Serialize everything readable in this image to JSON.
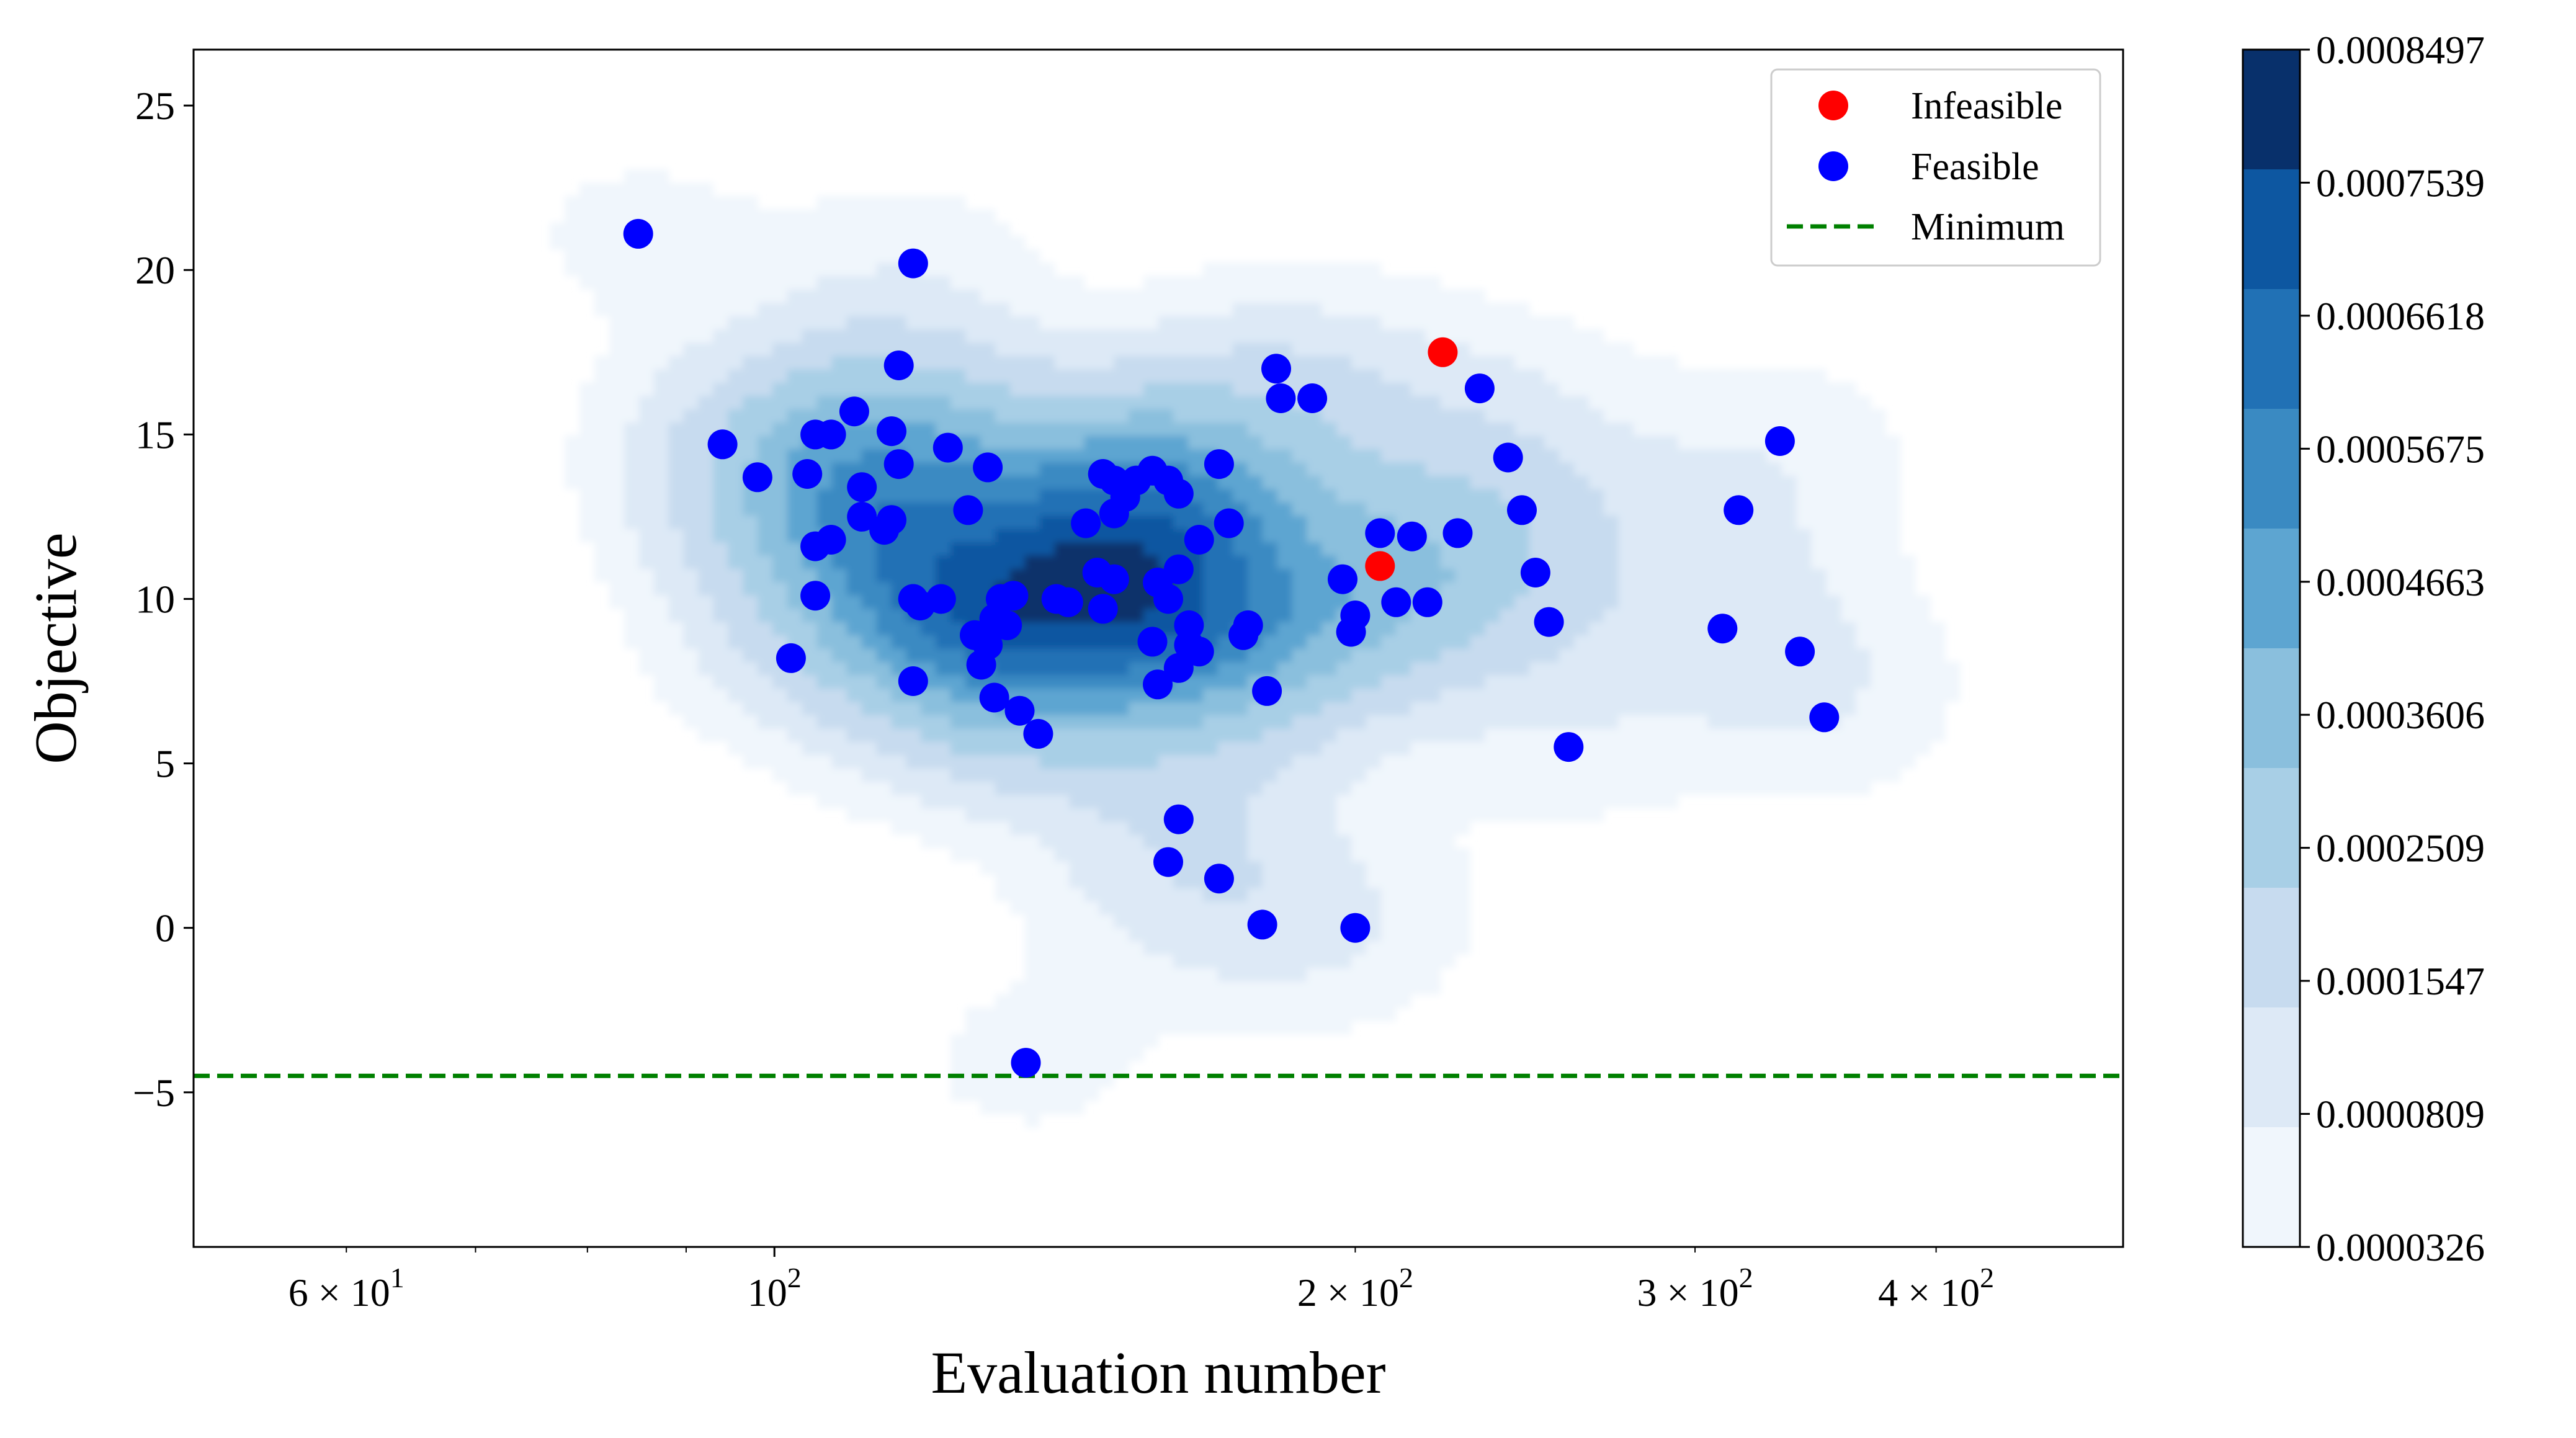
{
  "chart_data": {
    "type": "scatter",
    "title": "",
    "xlabel": "Evaluation number",
    "ylabel": "Objective",
    "xscale": "log",
    "xlim": [
      50,
      500
    ],
    "ylim": [
      -9.7,
      26.7
    ],
    "x_ticks": [
      {
        "value": 60,
        "base": "6",
        "exp": "1"
      },
      {
        "value": 100,
        "base": "",
        "exp": "2"
      },
      {
        "value": 200,
        "base": "2",
        "exp": "2"
      },
      {
        "value": 300,
        "base": "3",
        "exp": "2"
      },
      {
        "value": 400,
        "base": "4",
        "exp": "2"
      }
    ],
    "x_tick_base_prefix": "10",
    "x_tick_times": "×",
    "y_ticks": [
      25,
      20,
      15,
      10,
      5,
      0,
      -5
    ],
    "y_tick_labels": [
      "25",
      "20",
      "15",
      "10",
      "5",
      "0",
      "−5"
    ],
    "legend": {
      "position": "top-right",
      "entries": [
        {
          "label": "Infeasible",
          "kind": "marker",
          "color": "#ff0000"
        },
        {
          "label": "Feasible",
          "kind": "marker",
          "color": "#0000ff"
        },
        {
          "label": "Minimum",
          "kind": "dashed-line",
          "color": "#008000"
        }
      ]
    },
    "minimum_line": {
      "y": -4.5,
      "color": "#008000"
    },
    "colorbar": {
      "colormap": "Blues",
      "labels": [
        "0.0008497",
        "0.0007539",
        "0.0006618",
        "0.0005675",
        "0.0004663",
        "0.0003606",
        "0.0002509",
        "0.0001547",
        "0.0000809",
        "0.0000326"
      ],
      "colors": [
        "#08306b",
        "#0d57a1",
        "#2171b5",
        "#3a8ac2",
        "#5da5d1",
        "#8abfdd",
        "#a8cfe6",
        "#c7dbef",
        "#dde9f6",
        "#f0f6fc"
      ]
    },
    "density_contours": {
      "description": "KDE of feasible points",
      "center": {
        "x": 150,
        "y": 10.5
      }
    },
    "series": [
      {
        "name": "Infeasible",
        "color": "#ff0000",
        "points": [
          [
            222,
            17.5
          ],
          [
            206,
            11
          ]
        ]
      },
      {
        "name": "Feasible",
        "color": "#0000ff",
        "points": [
          [
            85,
            21.1
          ],
          [
            118,
            20.2
          ],
          [
            94,
            14.7
          ],
          [
            98,
            13.7
          ],
          [
            102,
            8.2
          ],
          [
            104,
            13.8
          ],
          [
            105,
            15.0
          ],
          [
            107,
            15.0
          ],
          [
            110,
            15.7
          ],
          [
            105,
            11.6
          ],
          [
            107,
            11.8
          ],
          [
            111,
            13.4
          ],
          [
            111,
            12.5
          ],
          [
            105,
            10.1
          ],
          [
            114,
            12.1
          ],
          [
            115,
            12.4
          ],
          [
            115,
            15.1
          ],
          [
            116,
            17.1
          ],
          [
            116,
            14.1
          ],
          [
            118,
            10.0
          ],
          [
            118,
            10.0
          ],
          [
            119,
            9.8
          ],
          [
            122,
            10.0
          ],
          [
            123,
            14.6
          ],
          [
            126,
            12.7
          ],
          [
            129,
            14.0
          ],
          [
            118,
            7.5
          ],
          [
            127,
            8.9
          ],
          [
            128,
            8.0
          ],
          [
            129,
            8.6
          ],
          [
            130,
            9.4
          ],
          [
            131,
            10.0
          ],
          [
            132,
            9.2
          ],
          [
            133,
            10.1
          ],
          [
            130,
            7.0
          ],
          [
            134,
            6.6
          ],
          [
            137,
            5.9
          ],
          [
            140,
            10.0
          ],
          [
            142,
            9.9
          ],
          [
            135,
            -4.1
          ],
          [
            145,
            12.3
          ],
          [
            148,
            13.8
          ],
          [
            150,
            13.6
          ],
          [
            150,
            12.6
          ],
          [
            152,
            13.1
          ],
          [
            154,
            13.6
          ],
          [
            157,
            13.9
          ],
          [
            160,
            13.6
          ],
          [
            162,
            13.2
          ],
          [
            147,
            10.8
          ],
          [
            150,
            10.6
          ],
          [
            148,
            9.7
          ],
          [
            157,
            8.7
          ],
          [
            158,
            10.5
          ],
          [
            160,
            10.0
          ],
          [
            162,
            10.9
          ],
          [
            164,
            9.2
          ],
          [
            166,
            11.8
          ],
          [
            170,
            14.1
          ],
          [
            172,
            12.3
          ],
          [
            158,
            7.4
          ],
          [
            164,
            8.6
          ],
          [
            162,
            7.9
          ],
          [
            166,
            8.4
          ],
          [
            175,
            8.9
          ],
          [
            176,
            9.2
          ],
          [
            180,
            7.2
          ],
          [
            182,
            17.0
          ],
          [
            183,
            16.1
          ],
          [
            190,
            16.1
          ],
          [
            197,
            10.6
          ],
          [
            200,
            9.5
          ],
          [
            199,
            9.0
          ],
          [
            206,
            12.0
          ],
          [
            210,
            9.9
          ],
          [
            214,
            11.9
          ],
          [
            218,
            9.9
          ],
          [
            226,
            12.0
          ],
          [
            232,
            16.4
          ],
          [
            240,
            14.3
          ],
          [
            244,
            12.7
          ],
          [
            248,
            10.8
          ],
          [
            252,
            9.3
          ],
          [
            258,
            5.5
          ],
          [
            162,
            3.3
          ],
          [
            160,
            2.0
          ],
          [
            170,
            1.5
          ],
          [
            179,
            0.1
          ],
          [
            200,
            0.0
          ],
          [
            310,
            9.1
          ],
          [
            316,
            12.7
          ],
          [
            332,
            14.8
          ],
          [
            340,
            8.4
          ],
          [
            350,
            6.4
          ]
        ]
      }
    ]
  }
}
